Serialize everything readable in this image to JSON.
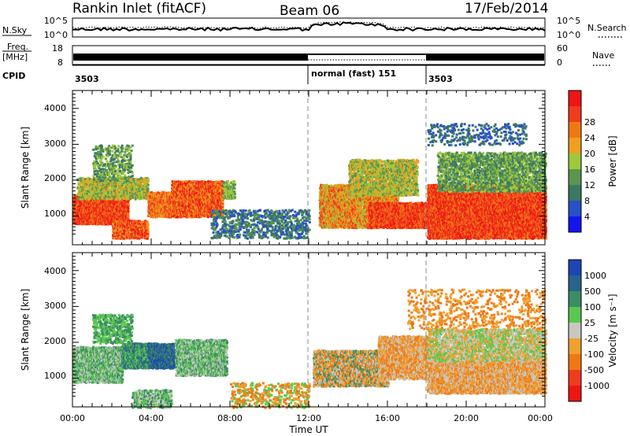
{
  "header": {
    "title": "Rankin Inlet (fitACF)",
    "beam": "Beam 06",
    "date": "17/Feb/2014"
  },
  "strip_panels": {
    "nsky_label": "N.Sky",
    "nsky_ticks": [
      "10^5",
      "10^0"
    ],
    "nsearch_label": "N.Search",
    "nsearch_ticks": [
      "10^5",
      "10^0"
    ],
    "freq_label": "Freq.",
    "freq_unit": "[MHz]",
    "freq_ticks": [
      "18",
      "8"
    ],
    "nave_label": "Nave",
    "nave_ticks": [
      "60",
      "0"
    ],
    "cpid_label": "CPID",
    "cpid_segments": [
      {
        "start": 0.0,
        "end": 12.0,
        "label": "3503"
      },
      {
        "start": 12.0,
        "end": 18.0,
        "label": "normal (fast) 151"
      },
      {
        "start": 18.0,
        "end": 24.0,
        "label": "3503"
      }
    ]
  },
  "chart_data": [
    {
      "type": "heatmap",
      "title": "",
      "xlabel": "",
      "ylabel": "Slant Range [km]",
      "xlim": [
        0,
        24
      ],
      "ylim": [
        200,
        4500
      ],
      "yticks": [
        "1000",
        "2000",
        "3000",
        "4000"
      ],
      "colorbar_label": "Power [dB]",
      "colorbar_ticks": [
        "4",
        "8",
        "12",
        "16",
        "20",
        "24",
        "28"
      ],
      "colors": [
        "#1414f0",
        "#2850c8",
        "#3c7864",
        "#5a9650",
        "#a0c83c",
        "#f0a020",
        "#f07814",
        "#f03c1e",
        "#f01414"
      ]
    },
    {
      "type": "heatmap",
      "title": "",
      "xlabel": "Time UT",
      "ylabel": "Slant Range [km]",
      "xlim": [
        0,
        24
      ],
      "ylim": [
        200,
        4500
      ],
      "xticks": [
        "00:00",
        "04:00",
        "08:00",
        "12:00",
        "16:00",
        "20:00",
        "00:00"
      ],
      "yticks": [
        "1000",
        "2000",
        "3000",
        "4000"
      ],
      "colorbar_label": "Velocity [m s⁻¹]",
      "colorbar_ticks": [
        "1000",
        "500",
        "100",
        "25",
        "-25",
        "-100",
        "-500",
        "-1000"
      ],
      "colors": [
        "#1e46b4",
        "#28648c",
        "#3c8c64",
        "#5ac850",
        "#c8c8c0",
        "#f0a030",
        "#f07814",
        "#f03c1e",
        "#f01414"
      ]
    }
  ]
}
